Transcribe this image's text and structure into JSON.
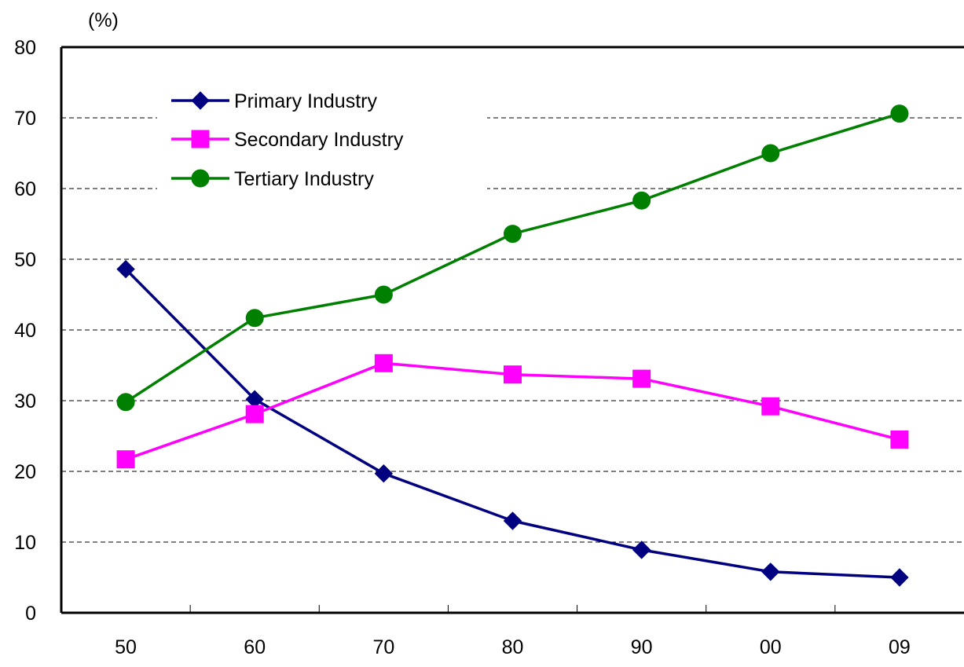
{
  "chart_data": {
    "type": "line",
    "title": "",
    "xlabel": "",
    "ylabel": "(%)",
    "categories": [
      "50",
      "60",
      "70",
      "80",
      "90",
      "00",
      "09"
    ],
    "ylim": [
      0,
      80
    ],
    "yticks": [
      0,
      10,
      20,
      30,
      40,
      50,
      60,
      70,
      80
    ],
    "grid": "horizontal-dashed",
    "legend_position": "top-left",
    "series": [
      {
        "name": "Primary Industry",
        "color": "#000080",
        "marker": "diamond",
        "values": [
          48.6,
          30.2,
          19.7,
          13.0,
          8.9,
          5.8,
          5.0
        ]
      },
      {
        "name": "Secondary Industry",
        "color": "#ff00ff",
        "marker": "square",
        "values": [
          21.7,
          28.1,
          35.3,
          33.7,
          33.1,
          29.2,
          24.5
        ]
      },
      {
        "name": "Tertiary Industry",
        "color": "#008000",
        "marker": "circle",
        "values": [
          29.8,
          41.7,
          45.0,
          53.6,
          58.3,
          65.0,
          70.6
        ]
      }
    ]
  }
}
